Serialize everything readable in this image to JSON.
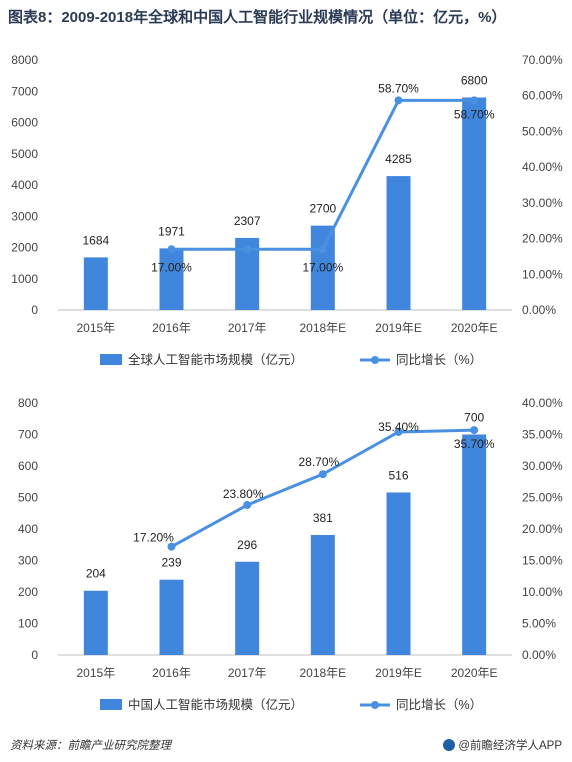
{
  "page_title": "图表8：2009-2018年全球和中国人工智能行业规模情况（单位：亿元，%）",
  "footer": {
    "source": "资料来源：前瞻产业研究院整理",
    "brand": "@前瞻经济学人APP"
  },
  "colors": {
    "bar": "#3f86dc",
    "line": "#4a90e2"
  },
  "chart_data": [
    {
      "type": "bar",
      "categories": [
        "2015年",
        "2016年",
        "2017年",
        "2018年E",
        "2019年E",
        "2020年E"
      ],
      "series": [
        {
          "name": "全球人工智能市场规模（亿元）",
          "type": "bar",
          "axis": "left",
          "values": [
            1684,
            1971,
            2307,
            2700,
            4285,
            6800
          ],
          "labels": [
            "1684",
            "1971",
            "2307",
            "2700",
            "4285",
            "6800"
          ]
        },
        {
          "name": "同比增长（%）",
          "type": "line",
          "axis": "right",
          "values": [
            null,
            17.0,
            17.0,
            17.0,
            58.7,
            58.7
          ],
          "labels": [
            "",
            "17.00%",
            "",
            "17.00%",
            "58.70%",
            "58.70%"
          ]
        }
      ],
      "left_axis": {
        "min": 0,
        "max": 8000,
        "ticks": [
          "0",
          "1000",
          "2000",
          "3000",
          "4000",
          "5000",
          "6000",
          "7000",
          "8000"
        ]
      },
      "right_axis": {
        "min": 0,
        "max": 70,
        "ticks": [
          "0.00%",
          "10.00%",
          "20.00%",
          "30.00%",
          "40.00%",
          "50.00%",
          "60.00%",
          "70.00%"
        ]
      },
      "legend_position": "bottom"
    },
    {
      "type": "bar",
      "categories": [
        "2015年",
        "2016年",
        "2017年",
        "2018年E",
        "2019年E",
        "2020年E"
      ],
      "series": [
        {
          "name": "中国人工智能市场规模（亿元）",
          "type": "bar",
          "axis": "left",
          "values": [
            204,
            239,
            296,
            381,
            516,
            700
          ],
          "labels": [
            "204",
            "239",
            "296",
            "381",
            "516",
            "700"
          ]
        },
        {
          "name": "同比增长（%）",
          "type": "line",
          "axis": "right",
          "values": [
            null,
            17.2,
            23.8,
            28.7,
            35.4,
            35.7
          ],
          "labels": [
            "",
            "17.20%",
            "23.80%",
            "28.70%",
            "35.40%",
            "35.70%"
          ]
        }
      ],
      "left_axis": {
        "min": 0,
        "max": 800,
        "ticks": [
          "0",
          "100",
          "200",
          "300",
          "400",
          "500",
          "600",
          "700",
          "800"
        ]
      },
      "right_axis": {
        "min": 0,
        "max": 40,
        "ticks": [
          "0.00%",
          "5.00%",
          "10.00%",
          "15.00%",
          "20.00%",
          "25.00%",
          "30.00%",
          "35.00%",
          "40.00%"
        ]
      },
      "legend_position": "bottom"
    }
  ]
}
